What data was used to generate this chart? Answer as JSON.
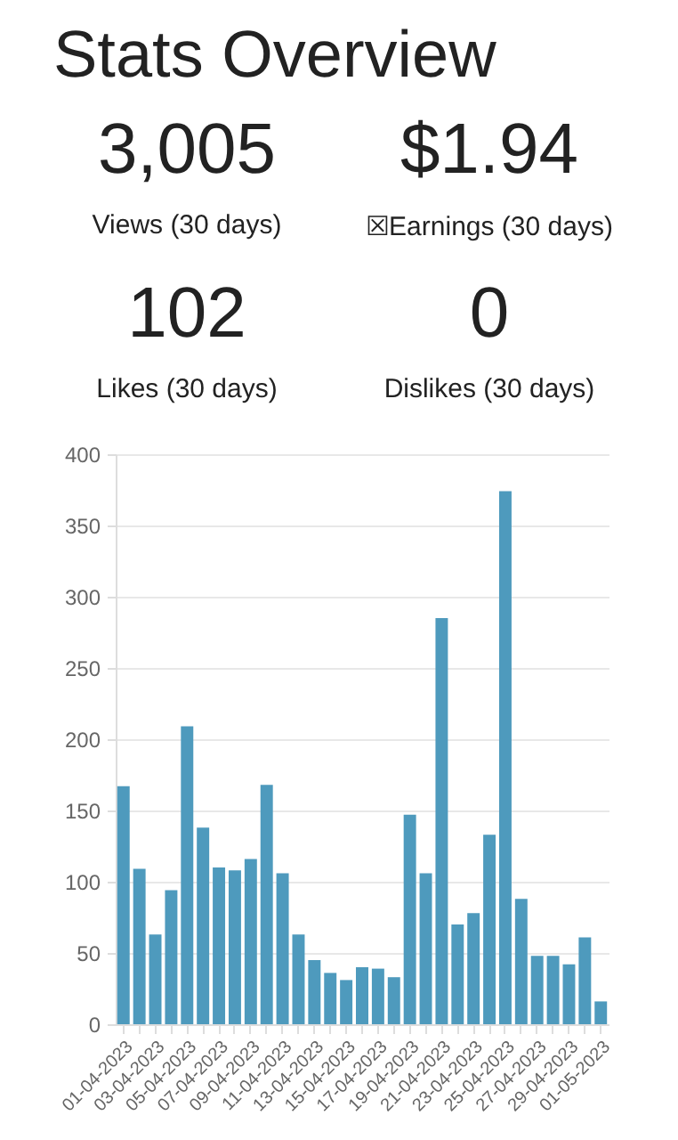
{
  "chart_data": [
    {
      "type": "other",
      "title": "Stats Overview",
      "annotations": [
        "3,005",
        "Views (30 days)",
        "$1.94",
        "☒Earnings (30 days)",
        "102",
        "Likes (30 days)",
        "0",
        "Dislikes (30 days)"
      ]
    },
    {
      "type": "bar",
      "categories": [
        "01-04-2023",
        null,
        "03-04-2023",
        null,
        "05-04-2023",
        null,
        "07-04-2023",
        null,
        "09-04-2023",
        null,
        "11-04-2023",
        null,
        "13-04-2023",
        null,
        "15-04-2023",
        null,
        "17-04-2023",
        null,
        "19-04-2023",
        null,
        "21-04-2023",
        null,
        "23-04-2023",
        null,
        "25-04-2023",
        null,
        "27-04-2023",
        null,
        "29-04-2023",
        null,
        "01-05-2023"
      ],
      "values": [
        167,
        109,
        63,
        94,
        209,
        138,
        110,
        108,
        116,
        168,
        106,
        63,
        45,
        36,
        31,
        40,
        39,
        33,
        147,
        106,
        285,
        70,
        78,
        133,
        374,
        88,
        48,
        48,
        42,
        61,
        16
      ],
      "color": "#4e9abd",
      "ylim": [
        0,
        400
      ],
      "yticks": [
        0,
        50,
        100,
        150,
        200,
        250,
        300,
        350,
        400
      ],
      "grid": "y"
    }
  ]
}
